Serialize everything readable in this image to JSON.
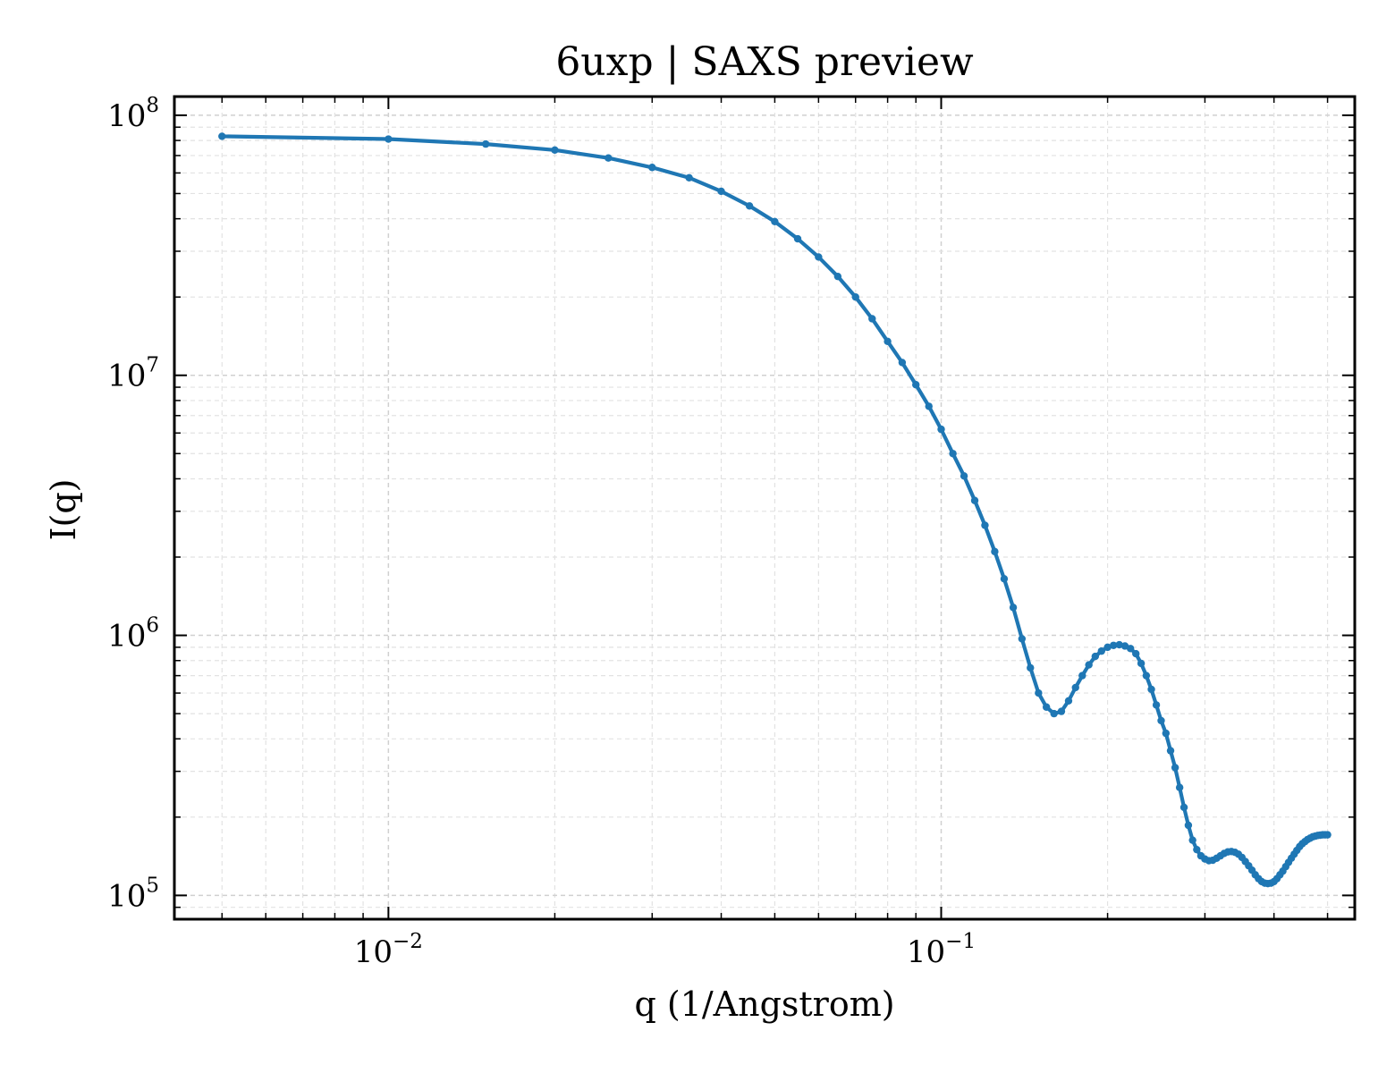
{
  "chart_data": {
    "type": "line",
    "title": "6uxp | SAXS preview",
    "xlabel": "q (1/Angstrom)",
    "ylabel": "I(q)",
    "xscale": "log",
    "yscale": "log",
    "xlim": [
      0.0041,
      0.56
    ],
    "ylim": [
      81000,
      118000000
    ],
    "grid": true,
    "legend": "none",
    "line_color": "#1f77b4",
    "x_major_ticks": [
      {
        "value": 0.01,
        "base": "10",
        "exp": "−2"
      },
      {
        "value": 0.1,
        "base": "10",
        "exp": "−1"
      }
    ],
    "y_major_ticks": [
      {
        "value": 100000,
        "base": "10",
        "exp": "5"
      },
      {
        "value": 1000000,
        "base": "10",
        "exp": "6"
      },
      {
        "value": 10000000,
        "base": "10",
        "exp": "7"
      },
      {
        "value": 100000000,
        "base": "10",
        "exp": "8"
      }
    ],
    "series": [
      {
        "x": [
          0.005,
          0.01,
          0.015,
          0.02,
          0.025,
          0.03,
          0.035,
          0.04,
          0.045,
          0.05,
          0.055,
          0.06,
          0.065,
          0.07,
          0.075,
          0.08,
          0.085,
          0.09,
          0.095,
          0.1,
          0.105,
          0.11,
          0.115,
          0.12,
          0.125,
          0.13,
          0.135,
          0.14,
          0.145,
          0.15,
          0.155,
          0.16,
          0.165,
          0.17,
          0.175,
          0.18,
          0.185,
          0.19,
          0.195,
          0.2,
          0.205,
          0.21,
          0.215,
          0.22,
          0.225,
          0.23,
          0.235,
          0.24,
          0.245,
          0.25,
          0.255,
          0.26,
          0.265,
          0.27,
          0.275,
          0.28,
          0.285,
          0.29,
          0.295,
          0.3,
          0.305,
          0.31,
          0.315,
          0.32,
          0.325,
          0.33,
          0.335,
          0.34,
          0.345,
          0.35,
          0.355,
          0.36,
          0.365,
          0.37,
          0.375,
          0.38,
          0.385,
          0.39,
          0.395,
          0.4,
          0.405,
          0.41,
          0.415,
          0.42,
          0.425,
          0.43,
          0.435,
          0.44,
          0.445,
          0.45,
          0.455,
          0.46,
          0.465,
          0.47,
          0.475,
          0.48,
          0.485,
          0.49,
          0.495,
          0.5
        ],
        "y": [
          83000000,
          81000000,
          77500000,
          73500000,
          68500000,
          63000000,
          57500000,
          51000000,
          44800000,
          39000000,
          33500000,
          28500000,
          24000000,
          20000000,
          16500000,
          13500000,
          11200000,
          9200000,
          7600000,
          6200000,
          5000000,
          4100000,
          3300000,
          2650000,
          2100000,
          1650000,
          1280000,
          970000,
          750000,
          600000,
          530000,
          500000,
          510000,
          560000,
          630000,
          700000,
          770000,
          830000,
          870000,
          900000,
          915000,
          920000,
          910000,
          890000,
          850000,
          780000,
          700000,
          620000,
          540000,
          470000,
          420000,
          360000,
          310000,
          260000,
          218000,
          186000,
          163000,
          150000,
          142000,
          138000,
          136000,
          136500,
          139000,
          142000,
          145000,
          147000,
          147500,
          146500,
          144000,
          140000,
          135000,
          130000,
          125000,
          120000,
          116000,
          113000,
          111500,
          111000,
          111500,
          113000,
          116000,
          120000,
          124000,
          129000,
          134000,
          139000,
          144000,
          149000,
          154000,
          158000,
          161000,
          164000,
          166000,
          168000,
          169000,
          170000,
          170500,
          171000,
          171000,
          171000
        ]
      }
    ]
  }
}
